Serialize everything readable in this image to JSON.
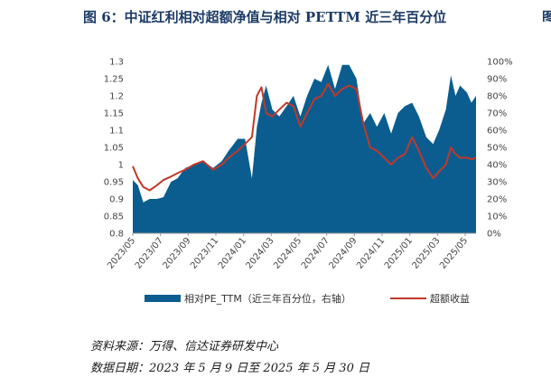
{
  "figure": {
    "title": "图 6：中证红利相对超额净值与相对 PETTM 近三年百分位",
    "edge_text": "图"
  },
  "chart_data": {
    "type": "area+line",
    "title": "图 6：中证红利相对超额净值与相对 PETTM 近三年百分位",
    "xlabel": "",
    "ylabel": "",
    "x_ticks": [
      "2023/05",
      "2023/07",
      "2023/09",
      "2023/11",
      "2024/01",
      "2024/03",
      "2024/05",
      "2024/07",
      "2024/09",
      "2024/11",
      "2025/01",
      "2025/03",
      "2025/05"
    ],
    "left_axis": {
      "range": [
        0.8,
        1.3
      ],
      "ticks": [
        "0.8",
        "0.85",
        "0.9",
        "0.95",
        "1",
        "1.05",
        "1.1",
        "1.15",
        "1.2",
        "1.25",
        "1.3"
      ]
    },
    "right_axis": {
      "range": [
        0,
        100
      ],
      "ticks": [
        "0%",
        "10%",
        "20%",
        "30%",
        "40%",
        "50%",
        "60%",
        "70%",
        "80%",
        "90%",
        "100%"
      ]
    },
    "x_range": [
      "2023-05-09",
      "2025-05-30"
    ],
    "grid": false,
    "legend_position": "bottom",
    "series": [
      {
        "name": "相对PE_TTM（近三年百分位，右轴）",
        "kind": "area",
        "axis": "right",
        "color": "#0b5d8f",
        "points": [
          [
            "2023-05-09",
            31
          ],
          [
            "2023-05-20",
            28
          ],
          [
            "2023-06-01",
            18
          ],
          [
            "2023-06-15",
            20
          ],
          [
            "2023-07-01",
            20
          ],
          [
            "2023-07-15",
            21
          ],
          [
            "2023-08-01",
            30
          ],
          [
            "2023-08-15",
            32
          ],
          [
            "2023-09-01",
            38
          ],
          [
            "2023-09-20",
            40
          ],
          [
            "2023-10-10",
            42
          ],
          [
            "2023-11-01",
            38
          ],
          [
            "2023-11-20",
            42
          ],
          [
            "2023-12-05",
            48
          ],
          [
            "2023-12-25",
            55
          ],
          [
            "2024-01-10",
            55
          ],
          [
            "2024-01-25",
            32
          ],
          [
            "2024-02-05",
            62
          ],
          [
            "2024-02-15",
            76
          ],
          [
            "2024-02-25",
            86
          ],
          [
            "2024-03-10",
            72
          ],
          [
            "2024-03-25",
            68
          ],
          [
            "2024-04-10",
            74
          ],
          [
            "2024-04-25",
            80
          ],
          [
            "2024-05-10",
            68
          ],
          [
            "2024-05-25",
            80
          ],
          [
            "2024-06-10",
            90
          ],
          [
            "2024-06-25",
            88
          ],
          [
            "2024-07-10",
            98
          ],
          [
            "2024-07-25",
            84
          ],
          [
            "2024-08-10",
            98
          ],
          [
            "2024-08-25",
            98
          ],
          [
            "2024-09-10",
            90
          ],
          [
            "2024-09-25",
            64
          ],
          [
            "2024-10-10",
            70
          ],
          [
            "2024-10-25",
            62
          ],
          [
            "2024-11-10",
            70
          ],
          [
            "2024-11-25",
            58
          ],
          [
            "2024-12-10",
            70
          ],
          [
            "2024-12-25",
            74
          ],
          [
            "2025-01-10",
            76
          ],
          [
            "2025-01-25",
            68
          ],
          [
            "2025-02-10",
            56
          ],
          [
            "2025-02-25",
            52
          ],
          [
            "2025-03-10",
            60
          ],
          [
            "2025-03-25",
            72
          ],
          [
            "2025-04-05",
            92
          ],
          [
            "2025-04-15",
            80
          ],
          [
            "2025-04-25",
            86
          ],
          [
            "2025-05-10",
            82
          ],
          [
            "2025-05-20",
            76
          ],
          [
            "2025-05-30",
            80
          ]
        ]
      },
      {
        "name": "超额收益",
        "kind": "line",
        "axis": "left",
        "color": "#c0392b",
        "points": [
          [
            "2023-05-09",
            0.995
          ],
          [
            "2023-05-20",
            0.96
          ],
          [
            "2023-06-01",
            0.935
          ],
          [
            "2023-06-15",
            0.925
          ],
          [
            "2023-07-01",
            0.94
          ],
          [
            "2023-07-15",
            0.955
          ],
          [
            "2023-08-01",
            0.965
          ],
          [
            "2023-08-15",
            0.975
          ],
          [
            "2023-09-01",
            0.985
          ],
          [
            "2023-09-20",
            1.0
          ],
          [
            "2023-10-10",
            1.01
          ],
          [
            "2023-11-01",
            0.985
          ],
          [
            "2023-11-20",
            1.0
          ],
          [
            "2023-12-05",
            1.02
          ],
          [
            "2023-12-25",
            1.04
          ],
          [
            "2024-01-10",
            1.06
          ],
          [
            "2024-01-25",
            1.08
          ],
          [
            "2024-02-05",
            1.2
          ],
          [
            "2024-02-15",
            1.225
          ],
          [
            "2024-02-25",
            1.15
          ],
          [
            "2024-03-10",
            1.14
          ],
          [
            "2024-03-25",
            1.16
          ],
          [
            "2024-04-10",
            1.18
          ],
          [
            "2024-04-25",
            1.17
          ],
          [
            "2024-05-10",
            1.11
          ],
          [
            "2024-05-25",
            1.15
          ],
          [
            "2024-06-10",
            1.19
          ],
          [
            "2024-06-25",
            1.2
          ],
          [
            "2024-07-10",
            1.235
          ],
          [
            "2024-07-25",
            1.2
          ],
          [
            "2024-08-10",
            1.22
          ],
          [
            "2024-08-25",
            1.23
          ],
          [
            "2024-09-10",
            1.22
          ],
          [
            "2024-09-25",
            1.12
          ],
          [
            "2024-10-10",
            1.05
          ],
          [
            "2024-10-25",
            1.04
          ],
          [
            "2024-11-10",
            1.02
          ],
          [
            "2024-11-25",
            1.0
          ],
          [
            "2024-12-10",
            1.02
          ],
          [
            "2024-12-25",
            1.03
          ],
          [
            "2025-01-10",
            1.08
          ],
          [
            "2025-01-25",
            1.04
          ],
          [
            "2025-02-10",
            0.99
          ],
          [
            "2025-02-25",
            0.96
          ],
          [
            "2025-03-10",
            0.98
          ],
          [
            "2025-03-25",
            1.0
          ],
          [
            "2025-04-05",
            1.05
          ],
          [
            "2025-04-15",
            1.03
          ],
          [
            "2025-04-25",
            1.02
          ],
          [
            "2025-05-10",
            1.02
          ],
          [
            "2025-05-20",
            1.015
          ],
          [
            "2025-05-30",
            1.02
          ]
        ]
      }
    ]
  },
  "legend": {
    "area_label": "相对PE_TTM（近三年百分位，右轴）",
    "line_label": "超额收益"
  },
  "notes": {
    "source": "资料来源：万得、信达证券研发中心",
    "date": "数据日期：2023 年 5 月 9 日至 2025 年 5 月 30 日"
  }
}
